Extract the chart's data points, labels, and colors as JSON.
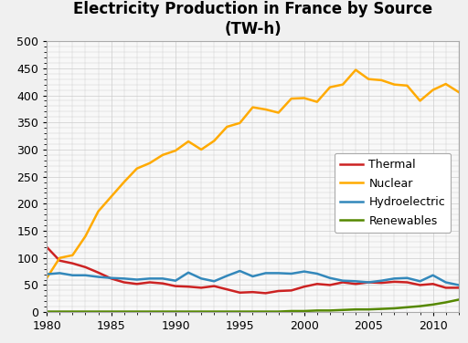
{
  "title": "Electricity Production in France by Source\n(TW-h)",
  "years": [
    1980,
    1981,
    1982,
    1983,
    1984,
    1985,
    1986,
    1987,
    1988,
    1989,
    1990,
    1991,
    1992,
    1993,
    1994,
    1995,
    1996,
    1997,
    1998,
    1999,
    2000,
    2001,
    2002,
    2003,
    2004,
    2005,
    2006,
    2007,
    2008,
    2009,
    2010,
    2011,
    2012
  ],
  "thermal": [
    120,
    95,
    90,
    83,
    73,
    62,
    55,
    52,
    55,
    53,
    48,
    47,
    45,
    48,
    42,
    36,
    37,
    35,
    39,
    40,
    47,
    52,
    50,
    55,
    52,
    55,
    54,
    56,
    55,
    50,
    52,
    45,
    45
  ],
  "nuclear": [
    63,
    100,
    105,
    140,
    186,
    213,
    240,
    265,
    275,
    290,
    298,
    315,
    300,
    316,
    342,
    349,
    378,
    374,
    368,
    394,
    395,
    388,
    415,
    420,
    447,
    430,
    428,
    420,
    418,
    390,
    410,
    421,
    406
  ],
  "hydro": [
    70,
    72,
    68,
    68,
    65,
    63,
    62,
    60,
    62,
    62,
    58,
    73,
    62,
    57,
    67,
    76,
    66,
    72,
    72,
    71,
    75,
    71,
    63,
    58,
    57,
    55,
    58,
    62,
    63,
    57,
    68,
    55,
    50
  ],
  "renewables": [
    1,
    1,
    1,
    1,
    1,
    1,
    1,
    1,
    1,
    1,
    1,
    1,
    1,
    1,
    1,
    1,
    1,
    1,
    1,
    2,
    2,
    3,
    3,
    4,
    5,
    5,
    6,
    7,
    9,
    11,
    14,
    18,
    23
  ],
  "thermal_color": "#cc2222",
  "nuclear_color": "#ffaa00",
  "hydro_color": "#3388bb",
  "renewables_color": "#558800",
  "background_color": "#f0f0f0",
  "plot_bg_color": "#f8f8f8",
  "grid_color": "#cccccc",
  "ylim": [
    0,
    500
  ],
  "yticks": [
    0,
    50,
    100,
    150,
    200,
    250,
    300,
    350,
    400,
    450,
    500
  ],
  "xticks": [
    1980,
    1985,
    1990,
    1995,
    2000,
    2005,
    2010
  ],
  "legend_labels": [
    "Thermal",
    "Nuclear",
    "Hydroelectric",
    "Renewables"
  ],
  "linewidth": 1.8,
  "title_fontsize": 12,
  "tick_fontsize": 9,
  "legend_fontsize": 9
}
